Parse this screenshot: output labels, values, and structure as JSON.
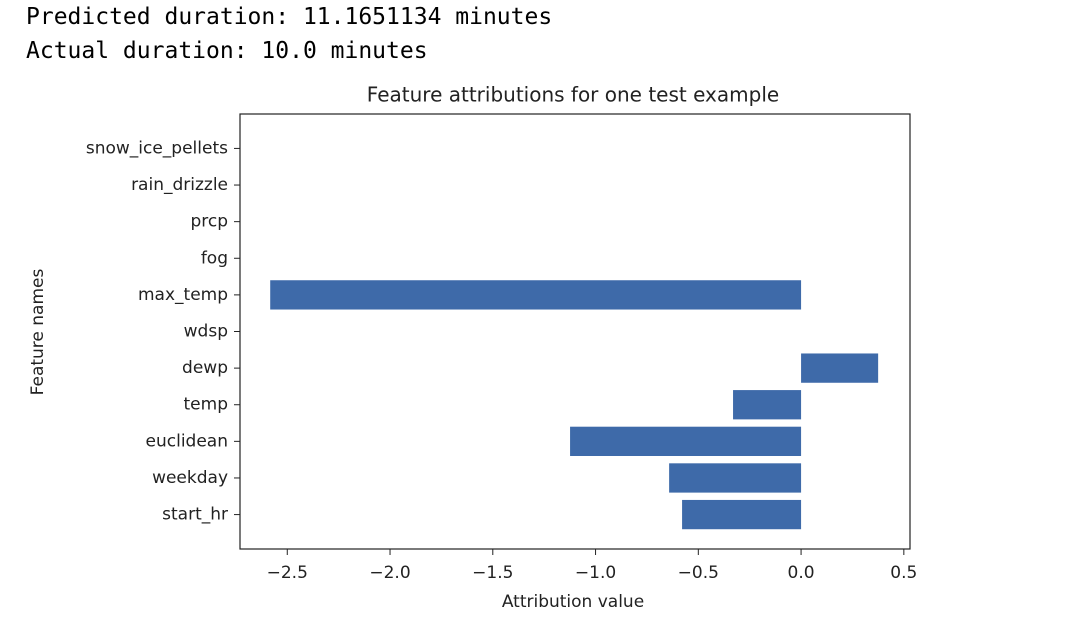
{
  "console_output": [
    "Predicted duration: 11.1651134 minutes",
    "Actual duration: 10.0 minutes"
  ],
  "chart_data": {
    "type": "barh",
    "title": "Feature attributions for one test example",
    "x_label": "Attribution value",
    "y_label": "Feature names",
    "categories": [
      "start_hr",
      "weekday",
      "euclidean",
      "temp",
      "dewp",
      "wdsp",
      "max_temp",
      "fog",
      "prcp",
      "rain_drizzle",
      "snow_ice_pellets"
    ],
    "values": [
      -0.579,
      -0.642,
      -1.124,
      -0.331,
      0.375,
      0,
      -2.583,
      0,
      0,
      0,
      0
    ],
    "color": "#3e6aa9",
    "xlim": [
      -2.73,
      0.53
    ],
    "xticks": [
      {
        "value": -2.5,
        "label": "−2.5"
      },
      {
        "value": -2.0,
        "label": "−2.0"
      },
      {
        "value": -1.5,
        "label": "−1.5"
      },
      {
        "value": -1.0,
        "label": "−1.0"
      },
      {
        "value": -0.5,
        "label": "−0.5"
      },
      {
        "value": 0,
        "label": "0.0"
      },
      0.5
    ],
    "ylim": [
      -0.94,
      10.94
    ]
  }
}
